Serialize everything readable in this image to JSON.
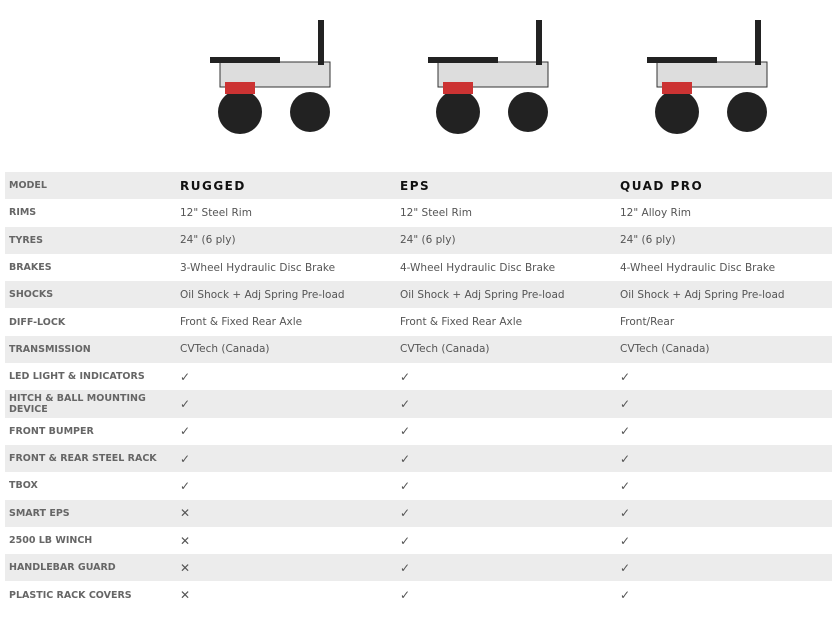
{
  "models": [
    "RUGGED",
    "EPS",
    "QUAD PRO"
  ],
  "model_label": "MODEL",
  "rows": [
    {
      "label": "RIMS",
      "values": [
        "12\" Steel Rim",
        "12\" Steel Rim",
        "12\" Alloy Rim"
      ]
    },
    {
      "label": "TYRES",
      "values": [
        "24\" (6 ply)",
        "24\" (6 ply)",
        "24\" (6 ply)"
      ]
    },
    {
      "label": "BRAKES",
      "values": [
        "3-Wheel Hydraulic Disc Brake",
        "4-Wheel Hydraulic Disc Brake",
        "4-Wheel Hydraulic Disc Brake"
      ]
    },
    {
      "label": "SHOCKS",
      "values": [
        "Oil Shock + Adj Spring Pre-load",
        "Oil Shock + Adj Spring Pre-load",
        "Oil Shock + Adj Spring Pre-load"
      ]
    },
    {
      "label": "DIFF-LOCK",
      "values": [
        "Front & Fixed Rear Axle",
        "Front & Fixed Rear Axle",
        "Front/Rear"
      ]
    },
    {
      "label": "TRANSMISSION",
      "values": [
        "CVTech (Canada)",
        "CVTech (Canada)",
        "CVTech (Canada)"
      ]
    },
    {
      "label": "LED LIGHT & INDICATORS",
      "values": [
        "✓",
        "✓",
        "✓"
      ]
    },
    {
      "label": "HITCH & BALL MOUNTING DEVICE",
      "values": [
        "✓",
        "✓",
        "✓"
      ]
    },
    {
      "label": "FRONT BUMPER",
      "values": [
        "✓",
        "✓",
        "✓"
      ]
    },
    {
      "label": "FRONT & REAR STEEL RACK",
      "values": [
        "✓",
        "✓",
        "✓"
      ]
    },
    {
      "label": "TBOX",
      "values": [
        "✓",
        "✓",
        "✓"
      ]
    },
    {
      "label": "SMART EPS",
      "values": [
        "✕",
        "✓",
        "✓"
      ]
    },
    {
      "label": "2500 LB WINCH",
      "values": [
        "✕",
        "✓",
        "✓"
      ]
    },
    {
      "label": "HANDLEBAR GUARD",
      "values": [
        "✕",
        "✓",
        "✓"
      ]
    },
    {
      "label": "PLASTIC RACK COVERS",
      "values": [
        "✕",
        "✓",
        "✓"
      ]
    }
  ]
}
